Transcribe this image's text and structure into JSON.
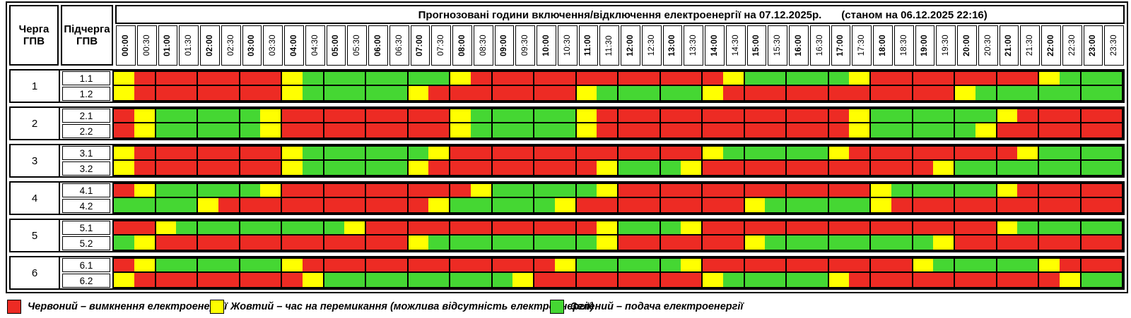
{
  "header": {
    "col1": "Черга\nГПВ",
    "col2": "Підчерга\nГПВ"
  },
  "chart_data": {
    "type": "heatmap",
    "title": "Прогнозовані години включення/відключення електроенергії на 07.12.2025р.",
    "status_note": "(станом на 06.12.2025 22:16)",
    "x_labels": [
      "00:00",
      "00:30",
      "01:00",
      "01:30",
      "02:00",
      "02:30",
      "03:00",
      "03:30",
      "04:00",
      "04:30",
      "05:00",
      "05:30",
      "06:00",
      "06:30",
      "07:00",
      "07:30",
      "08:00",
      "08:30",
      "09:00",
      "09:30",
      "10:00",
      "10:30",
      "11:00",
      "11:30",
      "12:00",
      "12:30",
      "13:00",
      "13:30",
      "14:00",
      "14:30",
      "15:00",
      "15:30",
      "16:00",
      "16:30",
      "17:00",
      "17:30",
      "18:00",
      "18:30",
      "19:00",
      "19:30",
      "20:00",
      "20:30",
      "21:00",
      "21:30",
      "22:00",
      "22:30",
      "23:00",
      "23:30"
    ],
    "value_meaning": {
      "R": "вимкнення електроенергії",
      "Y": "час на перемикання",
      "G": "подача електроенергії"
    },
    "color_map": {
      "R": "#ed2b24",
      "Y": "#ffff00",
      "G": "#45d733"
    },
    "rows": [
      {
        "queue": "1",
        "sub": "1.1",
        "pattern": "YRRRRRRRYGGGGGGGYRRRRRRRRRRRRYGGGGGYRRRRRRRRYGGG"
      },
      {
        "queue": "1",
        "sub": "1.2",
        "pattern": "YRRRRRRRYGGGGGYRRRRRRRYGGGGGYRRRRRRRRRRRYGGGGGGG"
      },
      {
        "queue": "2",
        "sub": "2.1",
        "pattern": "RYGGGGGYRRRRRRRRYGGGGGYRRRRRRRRRRRRYGGGGGGYRRRRR"
      },
      {
        "queue": "2",
        "sub": "2.2",
        "pattern": "RYGGGGGYRRRRRRRRYGGGGGYRRRRRRRRRRRRYGGGGGYRRRRRR"
      },
      {
        "queue": "3",
        "sub": "3.1",
        "pattern": "YRRRRRRRYGGGGGGYRRRRRRRRRRRRYGGGGGYRRRRRRRRYGGGG"
      },
      {
        "queue": "3",
        "sub": "3.2",
        "pattern": "YRRRRRRRYGGGGGYRRRRRRRRYGGGYRRRRRRRRRRRYGGGGGGGG"
      },
      {
        "queue": "4",
        "sub": "4.1",
        "pattern": "RYGGGGGYRRRRRRRRRYGGGGGYRRRRRRRRRRRRYGGGGGYRRRRR"
      },
      {
        "queue": "4",
        "sub": "4.2",
        "pattern": "GGGGYRRRRRRRRRRYGGGGGYRRRRRRRRYGGGGGYRRRRRRRRRRR"
      },
      {
        "queue": "5",
        "sub": "5.1",
        "pattern": "RRYGGGGGGGGYRRRRRRRRRRRYGGGYRRRRRRRRRRRRRRYGGGGG"
      },
      {
        "queue": "5",
        "sub": "5.2",
        "pattern": "GYRRRRRRRRRRRRYGGGGGGGGYRRRRRRYGGGGGGGGYRRRRRRRR"
      },
      {
        "queue": "6",
        "sub": "6.1",
        "pattern": "RYGGGGGGYRRRRRRRRRRRRYGGGGGYRRRRRRRRRRYGGGGGYRRR"
      },
      {
        "queue": "6",
        "sub": "6.2",
        "pattern": "YRRRRRRRRYGGGGGGGGGYRRRRRRRRYGGGGGYRRRRRRRRRRYGG"
      }
    ]
  },
  "legend": {
    "items": [
      {
        "key": "R",
        "label": "Червоний – вимкнення електроенергії"
      },
      {
        "key": "Y",
        "label": "Жовтий – час на перемикання (можлива відсутність електроенергії)"
      },
      {
        "key": "G",
        "label": "Зелений – подача електроенергії"
      }
    ]
  }
}
